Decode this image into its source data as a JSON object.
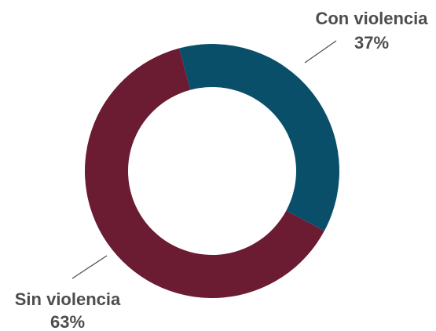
{
  "chart_data": {
    "type": "pie",
    "style": "donut",
    "categories": [
      "Con violencia",
      "Sin violencia"
    ],
    "values": [
      37,
      63
    ],
    "value_labels": [
      "37%",
      "63%"
    ],
    "colors": [
      "#094f6a",
      "#6b1b32"
    ],
    "start_angle_deg": -15,
    "legend": "none",
    "title": ""
  }
}
